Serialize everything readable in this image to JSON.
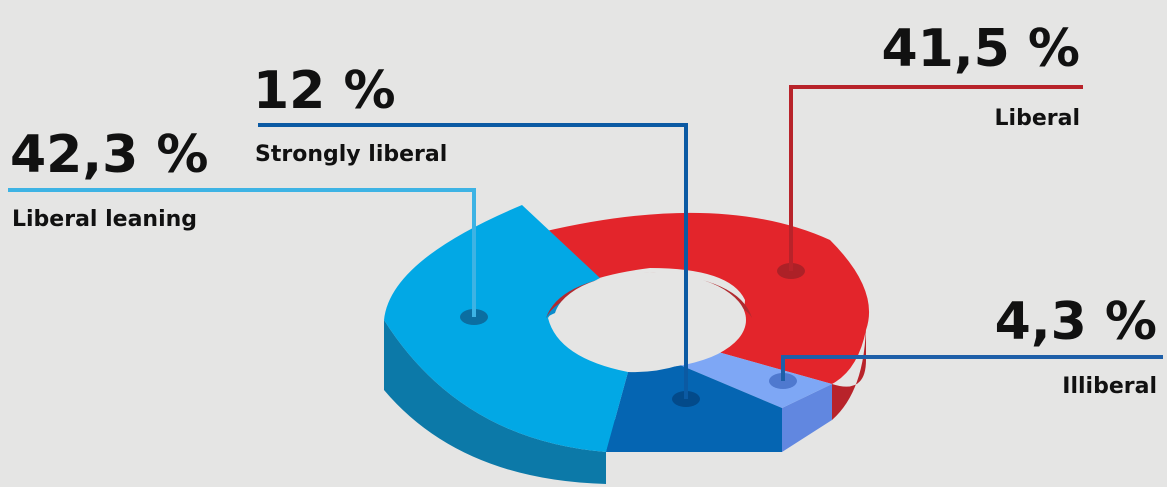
{
  "chart_data": {
    "type": "pie",
    "variant": "3d-donut",
    "slices": [
      {
        "label": "Liberal",
        "value": 41.5,
        "value_text": "41,5 %",
        "color": "#e3252b",
        "side_color": "#b8232a",
        "line_color": "#b8232a"
      },
      {
        "label": "Illiberal",
        "value": 4.3,
        "value_text": "4,3 %",
        "color": "#7ea7f5",
        "side_color": "#6187e0",
        "line_color": "#1e5fa8"
      },
      {
        "label": "Strongly liberal",
        "value": 12,
        "value_text": "12 %",
        "color": "#0565b2",
        "side_color": "#034f94",
        "line_color": "#0b5aa3"
      },
      {
        "label": "Liberal leaning",
        "value": 42.3,
        "value_text": "42,3 %",
        "color": "#02a8e5",
        "side_color": "#0c79a8",
        "line_color": "#3db3e4"
      }
    ]
  }
}
